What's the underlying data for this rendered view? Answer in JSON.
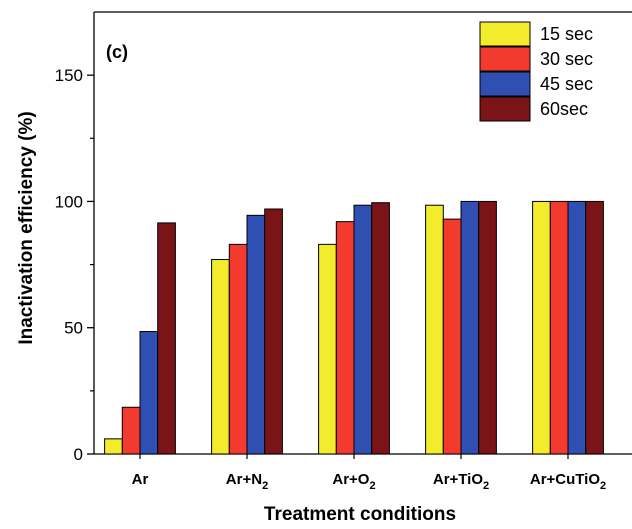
{
  "chart_data": {
    "type": "bar",
    "panel_label": "(c)",
    "xlabel": "Treatment conditions",
    "ylabel": "Inactivation efficiency (%)",
    "ylim": [
      0,
      175
    ],
    "yticks": [
      0,
      50,
      100,
      150
    ],
    "categories": [
      {
        "base": "Ar",
        "sub": "",
        "tail": ""
      },
      {
        "base": "Ar+N",
        "sub": "2",
        "tail": ""
      },
      {
        "base": "Ar+O",
        "sub": "2",
        "tail": ""
      },
      {
        "base": "Ar+TiO",
        "sub": "2",
        "tail": ""
      },
      {
        "base": "Ar+CuTiO",
        "sub": "2",
        "tail": ""
      }
    ],
    "series": [
      {
        "name": "15  sec",
        "color": "#f2ec2c",
        "values": [
          6,
          77,
          83,
          98.5,
          100
        ]
      },
      {
        "name": "30 sec",
        "color": "#f23a2e",
        "values": [
          18.5,
          83,
          92,
          93,
          100
        ]
      },
      {
        "name": "45 sec",
        "color": "#2f4fb3",
        "values": [
          48.5,
          94.5,
          98.5,
          100,
          100
        ]
      },
      {
        "name": "60sec",
        "color": "#7a1416",
        "values": [
          91.5,
          97,
          99.5,
          100,
          100
        ]
      }
    ],
    "legend_position": "top-right",
    "grid": false
  }
}
